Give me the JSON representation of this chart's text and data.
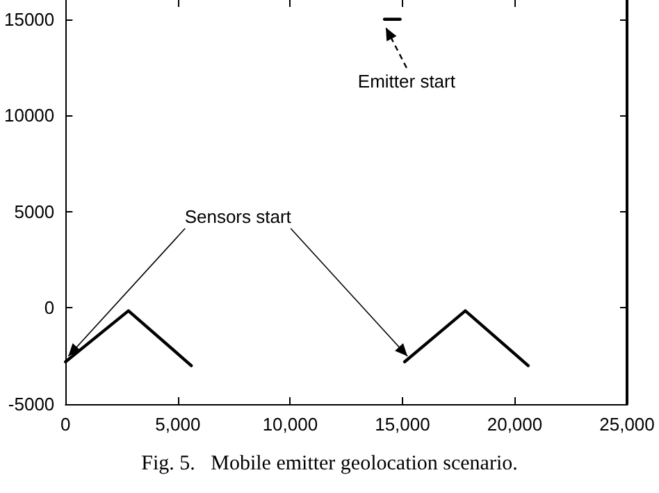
{
  "chart_data": {
    "type": "line",
    "series": [
      {
        "color": "#000000",
        "x": [
          0,
          2800,
          5600
        ],
        "values": [
          -2800,
          -150,
          -3000
        ]
      },
      {
        "color": "#000000",
        "x": [
          15100,
          17800,
          20600
        ],
        "values": [
          -2800,
          -150,
          -3000
        ]
      },
      {
        "color": "#000000",
        "x": [
          14200,
          14900
        ],
        "values": [
          15000,
          15000
        ]
      }
    ],
    "xlim": [
      0,
      25000
    ],
    "ylim": [
      -5000,
      16000
    ],
    "xticks": [
      0,
      {
        "value": 5000,
        "label": "5,000"
      },
      {
        "value": 10000,
        "label": "10,000"
      },
      {
        "value": 15000,
        "label": "15,000"
      },
      {
        "value": 20000,
        "label": "20,000"
      },
      {
        "value": 25000,
        "label": "25,000"
      }
    ],
    "yticks": [
      -5000,
      0,
      5000,
      10000,
      15000
    ],
    "grid": false,
    "marker": "none",
    "line_style": "solid",
    "annotations": [
      {
        "text": "Emitter start",
        "x": 15000,
        "y": 15000
      },
      {
        "text": "Sensors start",
        "x": 0,
        "y": -2800
      },
      "Fig. 5.   Mobile emitter geolocation scenario."
    ]
  }
}
